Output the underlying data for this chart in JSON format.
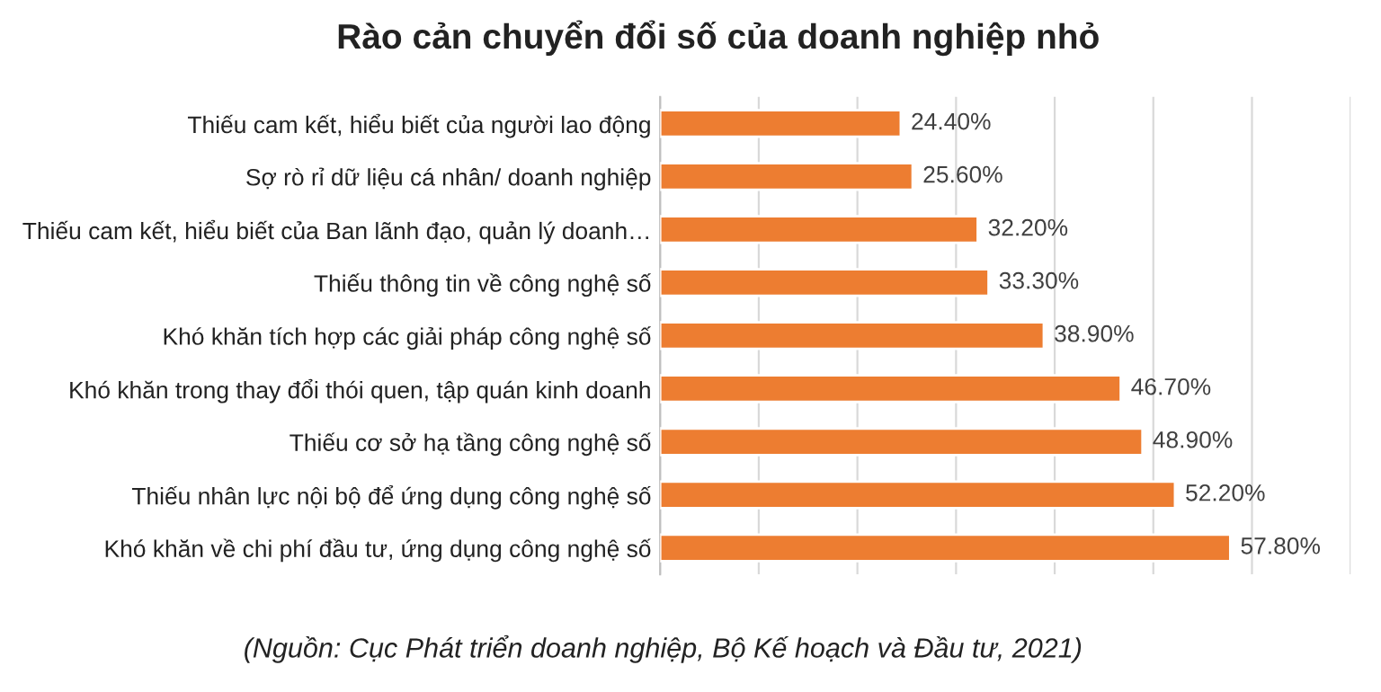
{
  "chart_data": {
    "type": "bar",
    "orientation": "horizontal",
    "title": "Rào cản chuyển đổi số của doanh nghiệp nhỏ",
    "categories": [
      "Thiếu cam kết, hiểu biết của người lao động",
      "Sợ rò rỉ dữ liệu cá nhân/ doanh nghiệp",
      "Thiếu cam kết, hiểu biết của Ban lãnh đạo, quản lý doanh…",
      "Thiếu thông tin về công nghệ số",
      "Khó khăn tích hợp các giải pháp công nghệ số",
      "Khó khăn trong thay đổi thói quen, tập quán kinh doanh",
      "Thiếu cơ sở hạ tầng công nghệ số",
      "Thiếu nhân lực nội bộ để ứng dụng công nghệ số",
      "Khó khăn về chi phí đầu tư, ứng dụng công nghệ số"
    ],
    "values": [
      24.4,
      25.6,
      32.2,
      33.3,
      38.9,
      46.7,
      48.9,
      52.2,
      57.8
    ],
    "value_labels": [
      "24.40%",
      "25.60%",
      "32.20%",
      "33.30%",
      "38.90%",
      "46.70%",
      "48.90%",
      "52.20%",
      "57.80%"
    ],
    "color": "#ed7d31",
    "xlim": [
      0,
      70
    ],
    "xticks": [
      {
        "value": 0,
        "label": null
      },
      {
        "value": 10,
        "label": null
      },
      {
        "value": 20,
        "label": null
      },
      {
        "value": 30,
        "label": null
      },
      {
        "value": 40,
        "label": null
      },
      {
        "value": 50,
        "label": null
      },
      {
        "value": 60,
        "label": null
      },
      {
        "value": 70,
        "label": null
      }
    ],
    "tick_labels": "y",
    "grid": "x",
    "legend": false,
    "annotations": [
      "(Nguồn: Cục Phát triển doanh nghiệp, Bộ Kế hoạch và Đầu tư, 2021)"
    ]
  }
}
